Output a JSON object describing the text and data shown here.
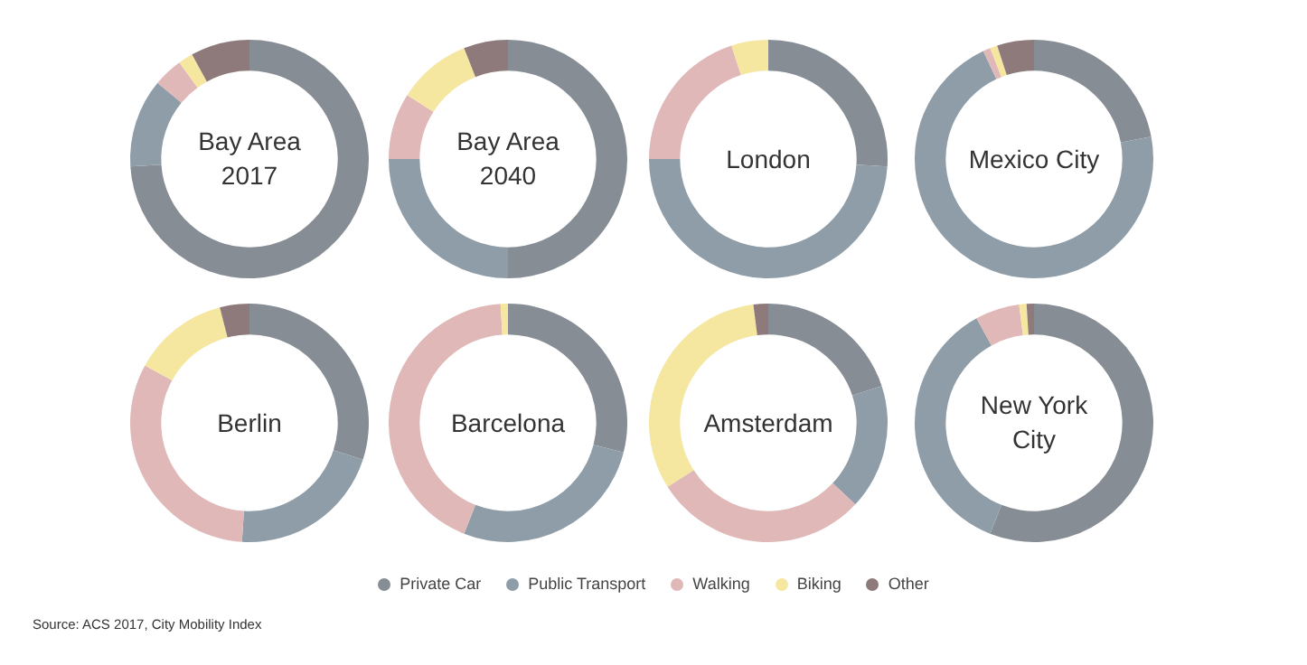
{
  "chart_data": [
    {
      "type": "donut",
      "title": "Bay Area 2017",
      "categories": [
        "Private Car",
        "Public Transport",
        "Walking",
        "Biking",
        "Other"
      ],
      "values": [
        74,
        12,
        4,
        2,
        8
      ],
      "colors": [
        "#878d94",
        "#8e9da8",
        "#e0b8b8",
        "#f5e6a0",
        "#8e7a7a"
      ],
      "legend": "bottom",
      "annotations": [
        "Source: ACS 2017, City Mobility Index"
      ]
    },
    {
      "type": "donut",
      "title": "Bay Area 2040",
      "categories": [
        null,
        null,
        null,
        null,
        null
      ],
      "values": [
        50,
        25,
        9,
        10,
        6
      ],
      "colors": [
        "#878d94",
        "#8e9da8",
        "#e0b8b8",
        "#f5e6a0",
        "#8e7a7a"
      ]
    },
    {
      "type": "donut",
      "title": "London",
      "categories": [
        null,
        null,
        null,
        null,
        null
      ],
      "values": [
        26,
        49,
        20,
        5,
        0
      ],
      "colors": [
        "#878d94",
        "#8e9da8",
        "#e0b8b8",
        "#f5e6a0",
        "#8e7a7a"
      ]
    },
    {
      "type": "donut",
      "title": "Mexico City",
      "categories": [
        null,
        null,
        null,
        null,
        null
      ],
      "values": [
        22,
        71,
        1,
        1,
        5
      ],
      "colors": [
        "#878d94",
        "#8e9da8",
        "#e0b8b8",
        "#f5e6a0",
        "#8e7a7a"
      ]
    },
    {
      "type": "donut",
      "title": "Berlin",
      "categories": [
        null,
        null,
        null,
        null,
        null
      ],
      "values": [
        30,
        21,
        32,
        13,
        4
      ],
      "colors": [
        "#878d94",
        "#8e9da8",
        "#e0b8b8",
        "#f5e6a0",
        "#8e7a7a"
      ]
    },
    {
      "type": "donut",
      "title": "Barcelona",
      "categories": [
        null,
        null,
        null,
        null,
        null
      ],
      "values": [
        29,
        27,
        43,
        1,
        0
      ],
      "colors": [
        "#878d94",
        "#8e9da8",
        "#e0b8b8",
        "#f5e6a0",
        "#8e7a7a"
      ]
    },
    {
      "type": "donut",
      "title": "Amsterdam",
      "categories": [
        null,
        null,
        null,
        null,
        null
      ],
      "values": [
        20,
        17,
        29,
        32,
        2
      ],
      "colors": [
        "#878d94",
        "#8e9da8",
        "#e0b8b8",
        "#f5e6a0",
        "#8e7a7a"
      ]
    },
    {
      "type": "donut",
      "title": "New York City",
      "categories": [
        null,
        null,
        null,
        null,
        null
      ],
      "values": [
        56,
        36,
        6,
        1,
        1
      ],
      "colors": [
        "#878d94",
        "#8e9da8",
        "#e0b8b8",
        "#f5e6a0",
        "#8e7a7a"
      ]
    }
  ]
}
